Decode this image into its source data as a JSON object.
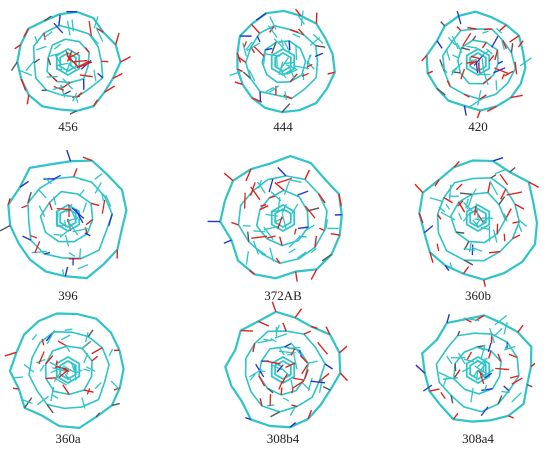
{
  "panels": [
    {
      "label": "456"
    },
    {
      "label": "444"
    },
    {
      "label": "420"
    },
    {
      "label": "396"
    },
    {
      "label": "372AB"
    },
    {
      "label": "360b"
    },
    {
      "label": "360a"
    },
    {
      "label": "308b4"
    },
    {
      "label": "308a4"
    }
  ]
}
